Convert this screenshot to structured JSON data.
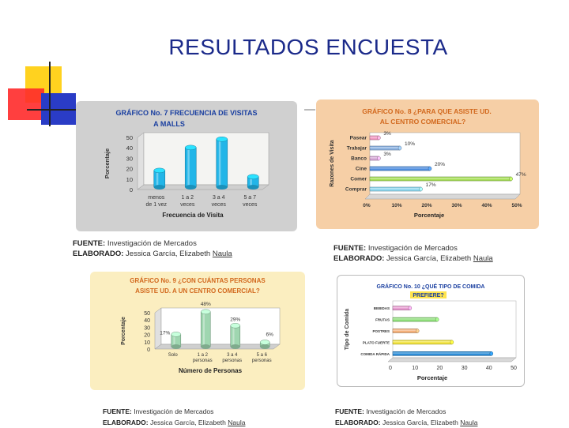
{
  "page": {
    "title": "RESULTADOS ENCUESTA"
  },
  "fuente": {
    "label": "FUENTE:",
    "value": "Investigación de Mercados",
    "elab_label": "ELABORADO:",
    "elab_value": "Jessica García, Elizabeth ",
    "elab_underlined": "Naula"
  },
  "colors": {
    "title": "#1b2a8a",
    "chart_title": "#1a3fa0",
    "chart_title_orange": "#d2691e",
    "panel_gray": "#d0d0d0",
    "panel_peach": "#f6cfa6",
    "panel_cream": "#fbeec0"
  },
  "chart_data": [
    {
      "type": "bar",
      "title_line1": "GRÁFICO No. 7 FRECUENCIA DE VISITAS",
      "title_line2": "A MALLS",
      "categories": [
        [
          "menos",
          "de 1 vez"
        ],
        [
          "1 a 2",
          "veces"
        ],
        [
          "3 a 4",
          "veces"
        ],
        [
          "5 a 7",
          "veces"
        ]
      ],
      "values": [
        16,
        38,
        46,
        10
      ],
      "ylabel": "Porcentaje",
      "xlabel": "Frecuencia de Visita",
      "ylim": [
        0,
        50
      ],
      "yticks": [
        "0",
        "10",
        "20",
        "30",
        "40",
        "50"
      ],
      "bar_color": "#22b5e8"
    },
    {
      "type": "bar",
      "orientation": "horizontal",
      "title_line1": "GRÁFICO No. 8  ¿PARA QUE ASISTE UD.",
      "title_line2": "AL CENTRO         COMERCIAL?",
      "categories": [
        "Pasear",
        "Trabajar",
        "Banco",
        "Cine",
        "Comer",
        "Comprar"
      ],
      "values": [
        3,
        10,
        3,
        20,
        47,
        17
      ],
      "data_labels": [
        "3%",
        "10%",
        "3%",
        "20%",
        "47%",
        "17%"
      ],
      "bar_colors": [
        "#f39bc4",
        "#8db3e2",
        "#d6a6d6",
        "#4f8fe0",
        "#a8e05a",
        "#8fd8ef"
      ],
      "ylabel": "Razones de Visita",
      "xlabel": "Porcentaje",
      "xlim": [
        0,
        50
      ],
      "xticks": [
        "0%",
        "10%",
        "20%",
        "30%",
        "40%",
        "50%"
      ]
    },
    {
      "type": "bar",
      "title_line1": "GRÁFICO No. 9  ¿CON CUÁNTAS PERSONAS",
      "title_line2": "ASISTE UD.  A UN CENTRO COMERCIAL?",
      "categories": [
        [
          "Solo",
          ""
        ],
        [
          "1 a 2",
          "personas"
        ],
        [
          "3 a 4",
          "personas"
        ],
        [
          "5 a 6",
          "personas"
        ]
      ],
      "values": [
        17,
        48,
        29,
        6
      ],
      "data_labels": [
        "17%",
        "48%",
        "29%",
        "6%"
      ],
      "ylabel": "Porcentaje",
      "xlabel": "Número de Personas",
      "ylim": [
        0,
        50
      ],
      "yticks": [
        "0",
        "10",
        "20",
        "30",
        "40",
        "50"
      ],
      "bar_color": "#9fd6b0"
    },
    {
      "type": "bar",
      "orientation": "horizontal",
      "title_line1": "GRÁFICO No. 10  ¿QUÉ TIPO DE COMIDA",
      "title_line2": "PREFIERE?",
      "categories": [
        "BEBIDAS",
        "FRUTAS",
        "POSTRES",
        "PLATO FUERTE",
        "COMIDA RÁPIDA"
      ],
      "values": [
        7,
        18,
        10,
        24,
        40
      ],
      "bar_colors": [
        "#e79ad0",
        "#8fe07a",
        "#f4b07a",
        "#f2e33c",
        "#2c8cd6"
      ],
      "ylabel": "Tipo de Comida",
      "xlabel": "Porcentaje",
      "xlim": [
        0,
        50
      ],
      "xticks": [
        "0",
        "10",
        "20",
        "30",
        "40",
        "50"
      ]
    }
  ]
}
